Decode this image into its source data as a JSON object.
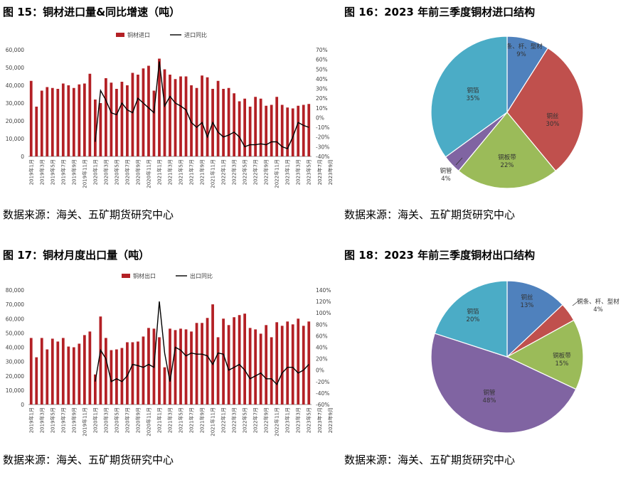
{
  "colors": {
    "bar": "#B32025",
    "line": "#000000",
    "axis": "#7f7f7f",
    "text": "#404040",
    "title": "#000000"
  },
  "panels": [
    {
      "title": "图 15：铜材进口量&同比增速（吨）",
      "source": "数据来源：海关、五矿期货研究中心"
    },
    {
      "title": "图 16：2023 年前三季度铜材进口结构",
      "source": "数据来源：海关、五矿期货研究中心"
    },
    {
      "title": "图 17：铜材月度出口量（吨）",
      "source": "数据来源：海关、五矿期货研究中心"
    },
    {
      "title": "图 18：2023 年前三季度铜材出口结构",
      "source": "数据来源：海关、五矿期货研究中心"
    }
  ],
  "chart_data": [
    {
      "type": "bar",
      "title": "图 15：铜材进口量&同比增速（吨）",
      "legend": [
        "铜材进口",
        "进口同比"
      ],
      "legend_position": "top",
      "x_tick_labels": [
        "2019年1月",
        "2019年3月",
        "2019年5月",
        "2019年7月",
        "2019年9月",
        "2019年11月",
        "2020年1月",
        "2020年3月",
        "2020年5月",
        "2020年7月",
        "2020年9月",
        "2020年11月",
        "2021年1月",
        "2021年3月",
        "2021年5月",
        "2021年7月",
        "2021年9月",
        "2021年11月",
        "2022年1月",
        "2022年3月",
        "2022年5月",
        "2022年7月",
        "2022年9月",
        "2022年11月",
        "2023年1月",
        "2023年3月",
        "2023年5月",
        "2023年7月",
        "2023年9月"
      ],
      "y_left_ticks": [
        "0",
        "10,000",
        "20,000",
        "30,000",
        "40,000",
        "50,000",
        "60,000"
      ],
      "y_right_ticks": [
        "-40%",
        "-30%",
        "-20%",
        "-10%",
        "0%",
        "10%",
        "20%",
        "30%",
        "40%",
        "50%",
        "60%",
        "70%"
      ],
      "ylim": [
        0,
        60000
      ],
      "y2lim": [
        -40,
        70
      ],
      "series": [
        {
          "name": "铜材进口",
          "type": "bar",
          "values": [
            42500,
            28000,
            37000,
            39000,
            38500,
            38000,
            41000,
            40000,
            38500,
            40500,
            41000,
            46500,
            32000,
            30000,
            44000,
            41500,
            38000,
            42000,
            40000,
            47000,
            46000,
            49500,
            51000,
            37000,
            55000,
            49000,
            46000,
            43500,
            45000,
            45000,
            40000,
            38500,
            45500,
            44500,
            38000,
            42500,
            38000,
            38500,
            35500,
            31000,
            32500,
            28000,
            33500,
            32500,
            28500,
            29000,
            33500,
            29000,
            27500,
            27000,
            28500,
            29000,
            29500
          ],
          "value_range_note": ""
        },
        {
          "name": "进口同比",
          "type": "line",
          "values": [
            null,
            null,
            null,
            null,
            null,
            null,
            null,
            null,
            null,
            null,
            null,
            null,
            -25,
            28,
            18,
            5,
            3,
            15,
            8,
            5,
            20,
            15,
            10,
            5,
            58,
            12,
            22,
            15,
            12,
            8,
            -5,
            -10,
            -5,
            -20,
            -5,
            -15,
            -20,
            -18,
            -15,
            -20,
            -30,
            -28,
            -28,
            -27,
            -28,
            -25,
            -25,
            -30,
            -32,
            -20,
            -5,
            -8,
            -10
          ]
        }
      ]
    },
    {
      "type": "pie",
      "title": "图 16：2023 年前三季度铜材进口结构",
      "slices": [
        {
          "label": "铜条、杆、型材",
          "value": 9,
          "color": "#4F81BD"
        },
        {
          "label": "铜丝",
          "value": 30,
          "color": "#C0504D"
        },
        {
          "label": "铜板带",
          "value": 22,
          "color": "#9BBB59"
        },
        {
          "label": "铜管",
          "value": 4,
          "color": "#8064A2"
        },
        {
          "label": "铜箔",
          "value": 35,
          "color": "#4BACC6"
        }
      ]
    },
    {
      "type": "bar",
      "title": "图 17：铜材月度出口量（吨）",
      "legend": [
        "铜材出口",
        "出口同比"
      ],
      "legend_position": "top",
      "x_tick_labels": [
        "2019年1月",
        "2019年3月",
        "2019年5月",
        "2019年7月",
        "2019年9月",
        "2019年11月",
        "2020年1月",
        "2020年3月",
        "2020年5月",
        "2020年7月",
        "2020年9月",
        "2020年11月",
        "2021年1月",
        "2021年3月",
        "2021年5月",
        "2021年7月",
        "2021年9月",
        "2021年11月",
        "2022年1月",
        "2022年3月",
        "2022年5月",
        "2022年7月",
        "2022年9月",
        "2022年11月",
        "2023年1月",
        "2023年3月",
        "2023年5月",
        "2023年7月",
        "2023年9月"
      ],
      "y_left_ticks": [
        "0",
        "10,000",
        "20,000",
        "30,000",
        "40,000",
        "50,000",
        "60,000",
        "70,000",
        "80,000"
      ],
      "y_right_ticks": [
        "-60%",
        "-40%",
        "-20%",
        "0%",
        "20%",
        "40%",
        "60%",
        "80%",
        "100%",
        "120%",
        "140%"
      ],
      "ylim": [
        0,
        80000
      ],
      "y2lim": [
        -60,
        140
      ],
      "series": [
        {
          "name": "铜材出口",
          "type": "bar",
          "values": [
            46500,
            33000,
            46500,
            38500,
            46000,
            44000,
            46500,
            40500,
            40000,
            42500,
            48500,
            51000,
            21000,
            61500,
            46500,
            38000,
            38500,
            39500,
            43500,
            43500,
            44000,
            47500,
            53500,
            53000,
            47000,
            26000,
            53000,
            52000,
            53000,
            52500,
            51000,
            57000,
            57000,
            60500,
            70000,
            47000,
            60000,
            55500,
            61000,
            62500,
            63500,
            53500,
            52500,
            49500,
            55500,
            47000,
            57500,
            55000,
            58000,
            56000,
            60000,
            55000,
            58000
          ]
        },
        {
          "name": "出口同比",
          "type": "line",
          "values": [
            null,
            null,
            null,
            null,
            null,
            null,
            null,
            null,
            null,
            null,
            null,
            null,
            -20,
            35,
            20,
            -20,
            -15,
            -20,
            -10,
            10,
            8,
            5,
            10,
            5,
            120,
            30,
            -20,
            40,
            35,
            25,
            30,
            28,
            28,
            25,
            10,
            30,
            28,
            0,
            5,
            10,
            0,
            -15,
            -10,
            -5,
            -15,
            -15,
            -25,
            -5,
            5,
            5,
            -5,
            0,
            10
          ]
        }
      ]
    },
    {
      "type": "pie",
      "title": "图 18：2023 年前三季度铜材出口结构",
      "slices": [
        {
          "label": "铜丝",
          "value": 13,
          "color": "#4F81BD"
        },
        {
          "label": "铜条、杆、型材",
          "value": 4,
          "color": "#C0504D"
        },
        {
          "label": "铜板带",
          "value": 15,
          "color": "#9BBB59"
        },
        {
          "label": "铜管",
          "value": 48,
          "color": "#8064A2"
        },
        {
          "label": "铜箔",
          "value": 20,
          "color": "#4BACC6"
        }
      ]
    }
  ]
}
